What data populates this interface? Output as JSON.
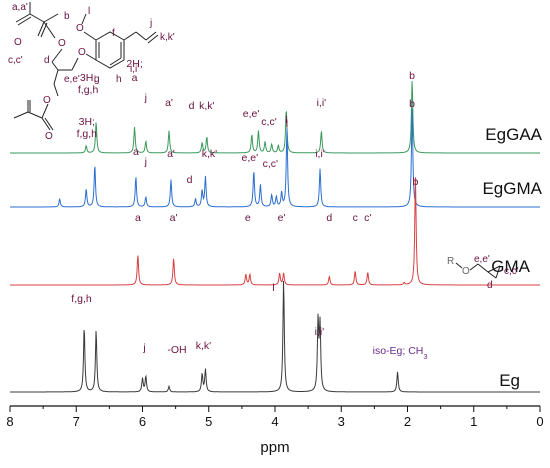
{
  "chart_data": {
    "type": "line",
    "title": "",
    "xlabel": "ppm",
    "ylabel": "",
    "xlim": [
      8,
      0
    ],
    "x_reversed": true,
    "x_ticks": [
      "8",
      "7",
      "6",
      "5",
      "4",
      "3",
      "2",
      "1",
      "0"
    ],
    "series": [
      {
        "name": "EgGAA",
        "color": "#3a9a5c",
        "peaks": [
          {
            "ppm": 6.85,
            "h": 0.1
          },
          {
            "ppm": 6.7,
            "h": 0.42
          },
          {
            "ppm": 6.12,
            "h": 0.35
          },
          {
            "ppm": 5.95,
            "h": 0.16
          },
          {
            "ppm": 5.6,
            "h": 0.3
          },
          {
            "ppm": 5.1,
            "h": 0.14
          },
          {
            "ppm": 5.03,
            "h": 0.22
          },
          {
            "ppm": 4.35,
            "h": 0.25
          },
          {
            "ppm": 4.25,
            "h": 0.3
          },
          {
            "ppm": 4.15,
            "h": 0.15
          },
          {
            "ppm": 4.05,
            "h": 0.12
          },
          {
            "ppm": 3.95,
            "h": 0.1
          },
          {
            "ppm": 3.83,
            "h": 0.6
          },
          {
            "ppm": 3.3,
            "h": 0.3
          },
          {
            "ppm": 1.93,
            "h": 1.0
          }
        ]
      },
      {
        "name": "EgGMA",
        "color": "#2b6fd1",
        "peaks": [
          {
            "ppm": 7.25,
            "h": 0.08
          },
          {
            "ppm": 6.85,
            "h": 0.18
          },
          {
            "ppm": 6.72,
            "h": 0.42
          },
          {
            "ppm": 6.1,
            "h": 0.3
          },
          {
            "ppm": 5.95,
            "h": 0.1
          },
          {
            "ppm": 5.57,
            "h": 0.27
          },
          {
            "ppm": 5.2,
            "h": 0.08
          },
          {
            "ppm": 5.1,
            "h": 0.16
          },
          {
            "ppm": 5.05,
            "h": 0.3
          },
          {
            "ppm": 4.32,
            "h": 0.36
          },
          {
            "ppm": 4.22,
            "h": 0.22
          },
          {
            "ppm": 4.05,
            "h": 0.12
          },
          {
            "ppm": 3.98,
            "h": 0.1
          },
          {
            "ppm": 3.9,
            "h": 0.14
          },
          {
            "ppm": 3.82,
            "h": 0.78
          },
          {
            "ppm": 3.32,
            "h": 0.38
          },
          {
            "ppm": 1.93,
            "h": 1.0
          }
        ]
      },
      {
        "name": "GMA",
        "color": "#d94040",
        "peaks": [
          {
            "ppm": 6.07,
            "h": 0.28
          },
          {
            "ppm": 5.53,
            "h": 0.25
          },
          {
            "ppm": 4.44,
            "h": 0.1
          },
          {
            "ppm": 4.38,
            "h": 0.1
          },
          {
            "ppm": 3.93,
            "h": 0.11
          },
          {
            "ppm": 3.87,
            "h": 0.11
          },
          {
            "ppm": 3.18,
            "h": 0.08
          },
          {
            "ppm": 2.79,
            "h": 0.13
          },
          {
            "ppm": 2.6,
            "h": 0.12
          },
          {
            "ppm": 2.05,
            "h": 0.02
          },
          {
            "ppm": 1.88,
            "h": 1.0
          }
        ]
      },
      {
        "name": "Eg",
        "color": "#3a3a3a",
        "peaks": [
          {
            "ppm": 6.88,
            "h": 0.58
          },
          {
            "ppm": 6.7,
            "h": 0.55
          },
          {
            "ppm": 6.0,
            "h": 0.12
          },
          {
            "ppm": 5.95,
            "h": 0.14
          },
          {
            "ppm": 5.6,
            "h": 0.05
          },
          {
            "ppm": 5.1,
            "h": 0.16
          },
          {
            "ppm": 5.05,
            "h": 0.2
          },
          {
            "ppm": 3.87,
            "h": 1.0
          },
          {
            "ppm": 3.35,
            "h": 0.62
          },
          {
            "ppm": 3.32,
            "h": 0.58
          },
          {
            "ppm": 2.15,
            "h": 0.18
          }
        ]
      }
    ],
    "annotations": {
      "EgGAA": [
        {
          "text": "3H;",
          "ppm": 6.7
        },
        {
          "text": "f,g,h",
          "ppm": 6.7
        },
        {
          "text": "2H;",
          "ppm": 6.12
        },
        {
          "text": "a",
          "ppm": 6.12
        },
        {
          "text": "j",
          "ppm": 5.95
        },
        {
          "text": "a'",
          "ppm": 5.6
        },
        {
          "text": "d",
          "ppm": 5.17
        },
        {
          "text": "k,k'",
          "ppm": 5.03
        },
        {
          "text": "e,e'",
          "ppm": 4.3
        },
        {
          "text": "l",
          "ppm": 3.83
        },
        {
          "text": "c,c'",
          "ppm": 4.0
        },
        {
          "text": "i,i'",
          "ppm": 3.3
        },
        {
          "text": "b",
          "ppm": 1.93
        }
      ],
      "EgGMA": [
        {
          "text": "3H;",
          "ppm": 6.72
        },
        {
          "text": "f,g,h",
          "ppm": 6.72
        },
        {
          "text": "a",
          "ppm": 6.1
        },
        {
          "text": "j",
          "ppm": 5.95
        },
        {
          "text": "a'",
          "ppm": 5.57
        },
        {
          "text": "d",
          "ppm": 5.2
        },
        {
          "text": "k,k'",
          "ppm": 5.05
        },
        {
          "text": "e,e'",
          "ppm": 4.32
        },
        {
          "text": "l",
          "ppm": 3.82
        },
        {
          "text": "c,c'",
          "ppm": 3.98
        },
        {
          "text": "i,i'",
          "ppm": 3.32
        },
        {
          "text": "b",
          "ppm": 1.93
        }
      ],
      "GMA": [
        {
          "text": "a",
          "ppm": 6.07
        },
        {
          "text": "a'",
          "ppm": 5.53
        },
        {
          "text": "e",
          "ppm": 4.41
        },
        {
          "text": "e'",
          "ppm": 3.9
        },
        {
          "text": "d",
          "ppm": 3.18
        },
        {
          "text": "c",
          "ppm": 2.79
        },
        {
          "text": "c'",
          "ppm": 2.6
        },
        {
          "text": "b",
          "ppm": 1.88
        }
      ],
      "Eg": [
        {
          "text": "f,g,h",
          "ppm": 6.8
        },
        {
          "text": "j",
          "ppm": 5.97
        },
        {
          "text": "-OH",
          "ppm": 5.6
        },
        {
          "text": "k,k'",
          "ppm": 5.08
        },
        {
          "text": "l",
          "ppm": 3.87
        },
        {
          "text": "i,i'",
          "ppm": 3.33
        },
        {
          "text": "iso-Eg; CH",
          "ppm": 1.9
        }
      ]
    },
    "structure_labels": {
      "a": "a,a'",
      "b": "b",
      "l": "l",
      "j": "j",
      "f": "f",
      "k": "k,k'",
      "c": "c,c'",
      "d": "d",
      "e": "e,e'",
      "i": "i,i'",
      "g": "g",
      "h": "h"
    },
    "gma_structure_labels": {
      "R": "R",
      "O": "O",
      "e": "e,e'",
      "d": "d",
      "c": "c,c'"
    },
    "subscript_3": "3",
    "grid": false,
    "legend": "none"
  }
}
